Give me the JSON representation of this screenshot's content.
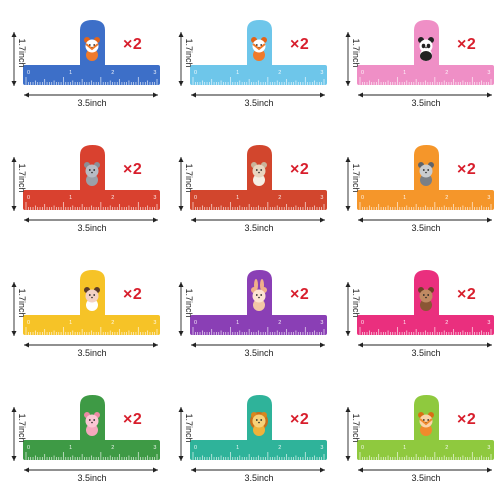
{
  "products": [
    {
      "color": "#3d6fc8",
      "animal": "fox-icon",
      "quantity": "×2",
      "width_label": "3.5inch",
      "height_label": "1.7inch",
      "tick_numbers": [
        "0",
        "1",
        "2",
        "3"
      ]
    },
    {
      "color": "#6ec6ea",
      "animal": "fox-icon",
      "quantity": "×2",
      "width_label": "3.5inch",
      "height_label": "1.7inch",
      "tick_numbers": [
        "0",
        "1",
        "2",
        "3"
      ]
    },
    {
      "color": "#ef8fc6",
      "animal": "panda-icon",
      "quantity": "×2",
      "width_label": "3.5inch",
      "height_label": "1.7inch",
      "tick_numbers": [
        "0",
        "1",
        "2",
        "3"
      ]
    },
    {
      "color": "#d9412f",
      "animal": "elephant-icon",
      "quantity": "×2",
      "width_label": "3.5inch",
      "height_label": "1.7inch",
      "tick_numbers": [
        "0",
        "1",
        "2",
        "3"
      ]
    },
    {
      "color": "#d2462d",
      "animal": "sheep-icon",
      "quantity": "×2",
      "width_label": "3.5inch",
      "height_label": "1.7inch",
      "tick_numbers": [
        "0",
        "1",
        "2",
        "3"
      ]
    },
    {
      "color": "#f5962a",
      "animal": "owl-icon",
      "quantity": "×2",
      "width_label": "3.5inch",
      "height_label": "1.7inch",
      "tick_numbers": [
        "0",
        "1",
        "2",
        "3"
      ]
    },
    {
      "color": "#f6c327",
      "animal": "cow-icon",
      "quantity": "×2",
      "width_label": "3.5inch",
      "height_label": "1.7inch",
      "tick_numbers": [
        "0",
        "1",
        "2",
        "3"
      ]
    },
    {
      "color": "#8a3fb5",
      "animal": "rabbit-icon",
      "quantity": "×2",
      "width_label": "3.5inch",
      "height_label": "1.7inch",
      "tick_numbers": [
        "0",
        "1",
        "2",
        "3"
      ]
    },
    {
      "color": "#ea2f7e",
      "animal": "bear-icon",
      "quantity": "×2",
      "width_label": "3.5inch",
      "height_label": "1.7inch",
      "tick_numbers": [
        "0",
        "1",
        "2",
        "3"
      ]
    },
    {
      "color": "#3e9a45",
      "animal": "pig-icon",
      "quantity": "×2",
      "width_label": "3.5inch",
      "height_label": "1.7inch",
      "tick_numbers": [
        "0",
        "1",
        "2",
        "3"
      ]
    },
    {
      "color": "#2fb39a",
      "animal": "lion-icon",
      "quantity": "×2",
      "width_label": "3.5inch",
      "height_label": "1.7inch",
      "tick_numbers": [
        "0",
        "1",
        "2",
        "3"
      ]
    },
    {
      "color": "#8fc93e",
      "animal": "tiger-icon",
      "quantity": "×2",
      "width_label": "3.5inch",
      "height_label": "1.7inch",
      "tick_numbers": [
        "0",
        "1",
        "2",
        "3"
      ]
    }
  ]
}
